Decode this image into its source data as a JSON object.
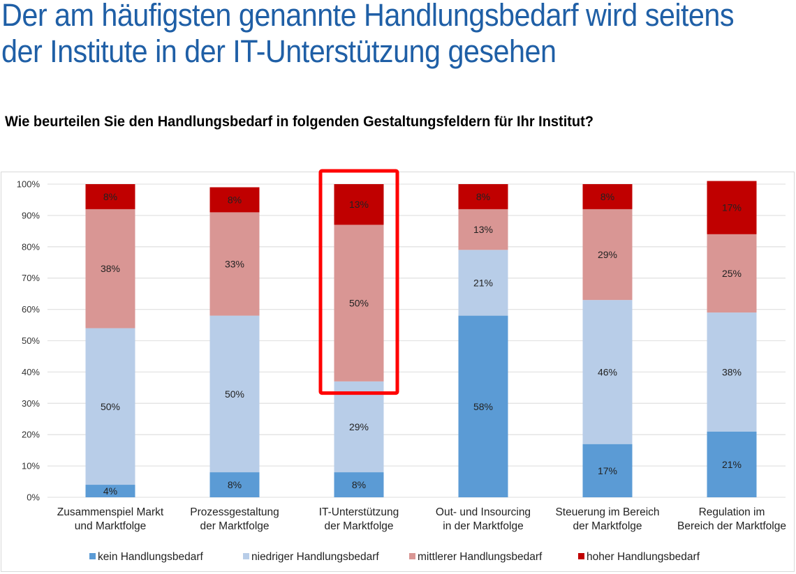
{
  "header": {
    "title_lines": [
      "Der am häufigsten genannte Handlungsbedarf wird seitens",
      "der Institute in der IT-Unterstützung gesehen"
    ],
    "subtitle": "Wie beurteilen Sie den Handlungsbedarf in folgenden Gestaltungsfeldern für Ihr Institut?"
  },
  "colors": {
    "title": "#1f5fa6",
    "kein": "#5b9bd5",
    "niedriger": "#b8cde8",
    "mittlerer": "#d99694",
    "hoher": "#c00000",
    "highlight": "#ff0000",
    "grid": "#e3e3e3"
  },
  "chart_data": {
    "type": "bar",
    "stacked": true,
    "title": "Wie beurteilen Sie den Handlungsbedarf in folgenden Gestaltungsfeldern für Ihr Institut?",
    "xlabel": "",
    "ylabel": "",
    "ylim": [
      0,
      100
    ],
    "yticks": [
      "0%",
      "10%",
      "20%",
      "30%",
      "40%",
      "50%",
      "60%",
      "70%",
      "80%",
      "90%",
      "100%"
    ],
    "grid": true,
    "legend_position": "bottom",
    "categories": [
      [
        "Zusammenspiel Markt",
        "und Marktfolge"
      ],
      [
        "Prozessgestaltung",
        "der Marktfolge"
      ],
      [
        "IT-Unterstützung",
        "der Marktfolge"
      ],
      [
        "Out- und Insourcing",
        "in der Marktfolge"
      ],
      [
        "Steuerung im Bereich",
        "der Marktfolge"
      ],
      [
        "Regulation im",
        "Bereich der Marktfolge"
      ]
    ],
    "series": [
      {
        "name": "kein Handlungsbedarf",
        "color_key": "kein",
        "values": [
          4,
          8,
          8,
          58,
          17,
          21
        ]
      },
      {
        "name": "niedriger Handlungsbedarf",
        "color_key": "niedriger",
        "values": [
          50,
          50,
          29,
          21,
          46,
          38
        ]
      },
      {
        "name": "mittlerer Handlungsbedarf",
        "color_key": "mittlerer",
        "values": [
          38,
          33,
          50,
          13,
          29,
          25
        ]
      },
      {
        "name": "hoher Handlungsbedarf",
        "color_key": "hoher",
        "values": [
          8,
          8,
          13,
          8,
          8,
          17
        ]
      }
    ],
    "annotations": [
      {
        "type": "highlight-box",
        "category_index": 2,
        "from_value": 37.5,
        "to_value": 100,
        "color_key": "highlight"
      }
    ]
  }
}
